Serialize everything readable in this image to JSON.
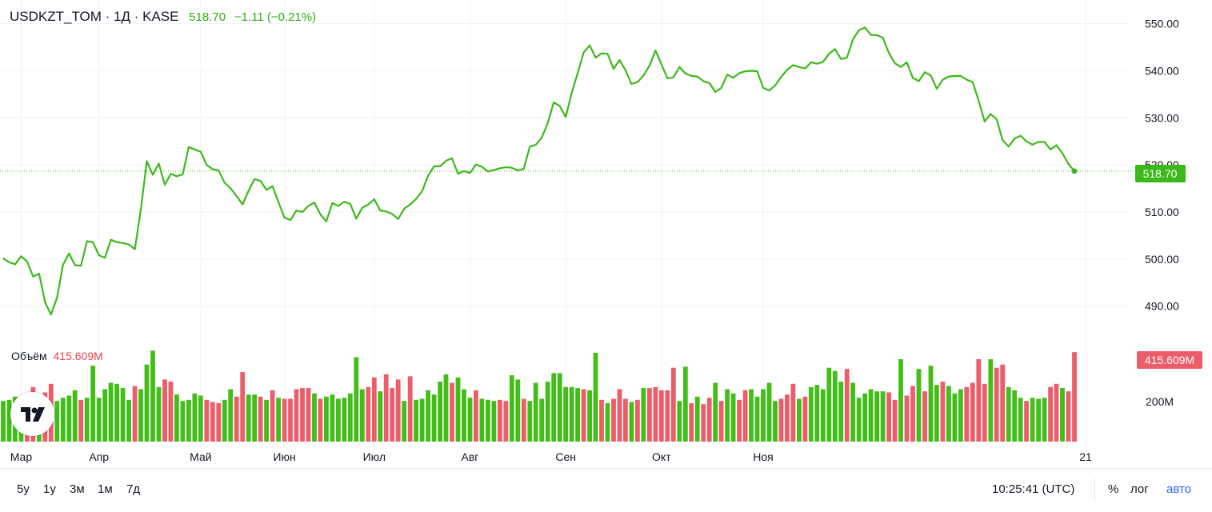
{
  "header": {
    "symbol": "USDKZT_TOM · 1Д · KASE",
    "last_price": "518.70",
    "change": "−1.11 (−0.21%)"
  },
  "volume_header": {
    "label": "Объём",
    "value": "415.609M"
  },
  "price_label": "518.70",
  "volume_label": "415.609M",
  "bottom_bar": {
    "ranges": [
      "5у",
      "1у",
      "3м",
      "1м",
      "7д"
    ],
    "time": "10:25:41 (UTC)",
    "options": [
      "%",
      "лог",
      "авто"
    ]
  },
  "colors": {
    "line": "#3cb91a",
    "up": "#42bd19",
    "down": "#ec5d6a",
    "grid": "#f0f3fa",
    "accent_blue": "#2962ff"
  },
  "chart_data": {
    "type": "line",
    "ylim": [
      484,
      553
    ],
    "y_ticks": [
      "550.00",
      "540.00",
      "530.00",
      "520.00",
      "510.00",
      "500.00",
      "490.00"
    ],
    "x_month_labels": [
      "Мар",
      "Апр",
      "Май",
      "Июн",
      "Июл",
      "Авг",
      "Сен",
      "Окт",
      "Ноя",
      "21"
    ],
    "price": [
      500.2,
      499.3,
      498.9,
      500.6,
      499.5,
      496.3,
      496.9,
      490.8,
      488.2,
      491.8,
      498.8,
      501.2,
      498.7,
      498.6,
      503.8,
      503.6,
      500.8,
      500.3,
      504.1,
      503.6,
      503.4,
      503.1,
      502.1,
      510.6,
      520.8,
      517.9,
      520.3,
      515.8,
      518.1,
      517.6,
      518.0,
      523.8,
      523.3,
      522.8,
      520.0,
      519.1,
      518.8,
      516.2,
      515.0,
      513.4,
      511.6,
      514.5,
      517.0,
      516.6,
      514.7,
      515.5,
      512.1,
      508.8,
      508.3,
      510.3,
      510.0,
      511.3,
      512.0,
      509.5,
      508.0,
      511.9,
      511.3,
      512.2,
      511.7,
      508.6,
      510.9,
      511.6,
      512.7,
      510.3,
      510.1,
      509.6,
      508.5,
      510.7,
      511.6,
      512.8,
      514.4,
      517.7,
      519.7,
      519.7,
      520.9,
      521.4,
      518.1,
      518.7,
      518.3,
      520.1,
      519.6,
      518.6,
      518.9,
      519.3,
      519.5,
      519.4,
      518.8,
      519.2,
      523.9,
      524.3,
      525.8,
      528.9,
      533.3,
      532.5,
      530.2,
      535.3,
      539.5,
      543.9,
      545.4,
      542.8,
      543.7,
      543.6,
      540.4,
      542.3,
      540.1,
      537.2,
      537.6,
      539.0,
      541.1,
      544.3,
      541.4,
      538.4,
      538.6,
      540.8,
      539.4,
      538.9,
      538.8,
      537.8,
      537.4,
      535.5,
      536.4,
      539.2,
      538.5,
      539.5,
      539.9,
      540.0,
      539.9,
      536.4,
      535.8,
      536.9,
      538.7,
      540.2,
      541.2,
      540.8,
      540.5,
      541.8,
      541.5,
      541.9,
      543.6,
      544.6,
      542.5,
      542.8,
      546.7,
      548.6,
      549.2,
      547.6,
      547.6,
      547.0,
      543.8,
      541.6,
      540.8,
      541.8,
      538.5,
      537.8,
      539.7,
      539.0,
      536.2,
      538.1,
      538.8,
      538.9,
      538.9,
      538.1,
      537.6,
      533.7,
      529.2,
      530.8,
      529.7,
      525.3,
      523.9,
      525.6,
      526.2,
      525.0,
      524.3,
      524.9,
      524.9,
      523.3,
      524.2,
      522.5,
      520.2,
      518.7
    ],
    "volume_type": "bar",
    "volume_axis_label": "200M",
    "volume_ylim": [
      0,
      560
    ],
    "volume": [
      190,
      195,
      210,
      200,
      225,
      255,
      195,
      230,
      270,
      190,
      205,
      215,
      240,
      195,
      205,
      355,
      205,
      245,
      275,
      270,
      250,
      195,
      260,
      245,
      360,
      425,
      255,
      290,
      280,
      220,
      190,
      195,
      225,
      215,
      195,
      185,
      180,
      195,
      245,
      210,
      325,
      220,
      220,
      210,
      195,
      240,
      205,
      200,
      200,
      245,
      250,
      250,
      225,
      200,
      210,
      220,
      200,
      205,
      225,
      395,
      245,
      255,
      300,
      235,
      315,
      250,
      290,
      190,
      305,
      195,
      200,
      240,
      220,
      280,
      315,
      275,
      300,
      245,
      205,
      240,
      200,
      195,
      190,
      195,
      190,
      310,
      290,
      200,
      190,
      275,
      200,
      280,
      320,
      320,
      255,
      255,
      250,
      245,
      240,
      415,
      195,
      180,
      200,
      245,
      200,
      185,
      195,
      250,
      250,
      255,
      240,
      240,
      345,
      190,
      350,
      180,
      210,
      175,
      205,
      275,
      190,
      245,
      225,
      195,
      240,
      245,
      210,
      245,
      275,
      190,
      200,
      220,
      270,
      200,
      210,
      255,
      265,
      245,
      345,
      330,
      280,
      340,
      275,
      205,
      225,
      245,
      235,
      235,
      230,
      195,
      385,
      215,
      260,
      340,
      235,
      355,
      265,
      280,
      260,
      225,
      245,
      255,
      275,
      385,
      270,
      385,
      345,
      360,
      255,
      240,
      205,
      190,
      205,
      200,
      205,
      255,
      270,
      250,
      235,
      418
    ],
    "volume_up": [
      1,
      1,
      1,
      1,
      0,
      0,
      1,
      0,
      0,
      1,
      1,
      1,
      1,
      0,
      1,
      1,
      1,
      1,
      1,
      1,
      1,
      1,
      0,
      1,
      1,
      1,
      1,
      0,
      0,
      1,
      1,
      1,
      1,
      1,
      0,
      0,
      0,
      1,
      1,
      0,
      0,
      1,
      1,
      0,
      1,
      0,
      1,
      0,
      0,
      0,
      0,
      0,
      1,
      0,
      1,
      1,
      1,
      1,
      1,
      1,
      1,
      0,
      0,
      1,
      0,
      0,
      0,
      1,
      0,
      1,
      1,
      1,
      1,
      1,
      1,
      0,
      1,
      1,
      1,
      0,
      1,
      1,
      1,
      0,
      0,
      1,
      1,
      0,
      1,
      1,
      1,
      1,
      1,
      1,
      1,
      1,
      1,
      0,
      1,
      1,
      0,
      1,
      0,
      0,
      0,
      1,
      0,
      1,
      0,
      0,
      0,
      0,
      0,
      1,
      1,
      0,
      1,
      0,
      0,
      1,
      0,
      1,
      1,
      0,
      0,
      1,
      1,
      1,
      1,
      1,
      0,
      0,
      0,
      1,
      0,
      1,
      1,
      1,
      1,
      1,
      1,
      0,
      1,
      1,
      1,
      1,
      1,
      1,
      0,
      0,
      1,
      0,
      0,
      1,
      0,
      1,
      1,
      0,
      1,
      1,
      1,
      0,
      0,
      0,
      0,
      1,
      0,
      0,
      1,
      1,
      1,
      0,
      1,
      1,
      1,
      0,
      0,
      1,
      0,
      0
    ]
  }
}
